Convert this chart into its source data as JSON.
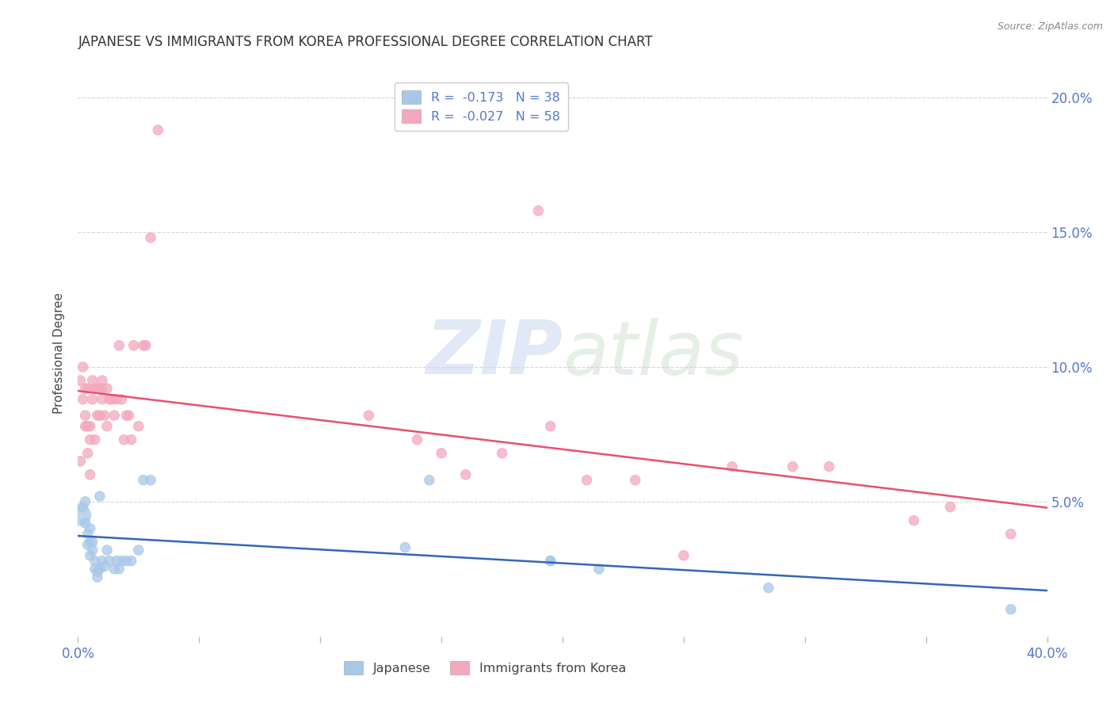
{
  "title": "JAPANESE VS IMMIGRANTS FROM KOREA PROFESSIONAL DEGREE CORRELATION CHART",
  "source": "Source: ZipAtlas.com",
  "ylabel": "Professional Degree",
  "watermark_zip": "ZIP",
  "watermark_atlas": "atlas",
  "xlim": [
    0.0,
    0.4
  ],
  "ylim": [
    0.0,
    0.21
  ],
  "xtick_positions": [
    0.0,
    0.05,
    0.1,
    0.15,
    0.2,
    0.25,
    0.3,
    0.35,
    0.4
  ],
  "xtick_labels": [
    "0.0%",
    "",
    "",
    "",
    "",
    "",
    "",
    "",
    "40.0%"
  ],
  "ytick_positions": [
    0.0,
    0.05,
    0.1,
    0.15,
    0.2
  ],
  "ytick_right_labels": [
    "",
    "5.0%",
    "10.0%",
    "15.0%",
    "20.0%"
  ],
  "japanese_color": "#a8c8e8",
  "korean_color": "#f4a8bc",
  "regression_japanese_color": "#3366bb",
  "regression_korean_color": "#e85070",
  "legend_r_japanese": "R =  -0.173",
  "legend_n_japanese": "N = 38",
  "legend_r_korean": "R =  -0.027",
  "legend_n_korean": "N = 58",
  "legend_label_japanese": "Japanese",
  "legend_label_korean": "Immigrants from Korea",
  "background_color": "#ffffff",
  "grid_color": "#d8d8d8",
  "title_color": "#333333",
  "right_axis_color": "#5577cc",
  "xtick_color": "#5577cc",
  "japanese_x": [
    0.001,
    0.002,
    0.003,
    0.003,
    0.004,
    0.004,
    0.005,
    0.005,
    0.005,
    0.006,
    0.006,
    0.007,
    0.007,
    0.008,
    0.008,
    0.009,
    0.009,
    0.01,
    0.011,
    0.012,
    0.013,
    0.015,
    0.016,
    0.017,
    0.018,
    0.02,
    0.022,
    0.025,
    0.027,
    0.03,
    0.135,
    0.145,
    0.195,
    0.215,
    0.285,
    0.385,
    0.195,
    0.01
  ],
  "japanese_y": [
    0.045,
    0.048,
    0.042,
    0.05,
    0.034,
    0.038,
    0.03,
    0.035,
    0.04,
    0.032,
    0.035,
    0.028,
    0.025,
    0.024,
    0.022,
    0.025,
    0.052,
    0.028,
    0.026,
    0.032,
    0.028,
    0.025,
    0.028,
    0.025,
    0.028,
    0.028,
    0.028,
    0.032,
    0.058,
    0.058,
    0.033,
    0.058,
    0.028,
    0.025,
    0.018,
    0.01,
    0.028,
    0.092
  ],
  "japanese_sizes": [
    350,
    80,
    80,
    80,
    80,
    80,
    80,
    80,
    80,
    80,
    80,
    80,
    80,
    80,
    80,
    80,
    80,
    80,
    80,
    80,
    80,
    80,
    80,
    80,
    80,
    80,
    80,
    80,
    80,
    80,
    80,
    80,
    80,
    80,
    80,
    80,
    80,
    80
  ],
  "korean_x": [
    0.001,
    0.001,
    0.002,
    0.002,
    0.003,
    0.003,
    0.003,
    0.004,
    0.004,
    0.004,
    0.005,
    0.005,
    0.005,
    0.006,
    0.006,
    0.007,
    0.007,
    0.008,
    0.008,
    0.009,
    0.009,
    0.01,
    0.01,
    0.011,
    0.012,
    0.012,
    0.013,
    0.014,
    0.015,
    0.016,
    0.017,
    0.018,
    0.019,
    0.02,
    0.021,
    0.022,
    0.023,
    0.025,
    0.027,
    0.028,
    0.03,
    0.033,
    0.16,
    0.175,
    0.195,
    0.21,
    0.23,
    0.25,
    0.27,
    0.295,
    0.31,
    0.345,
    0.36,
    0.385,
    0.12,
    0.14,
    0.15,
    0.19
  ],
  "korean_y": [
    0.065,
    0.095,
    0.088,
    0.1,
    0.082,
    0.092,
    0.078,
    0.068,
    0.078,
    0.092,
    0.073,
    0.06,
    0.078,
    0.088,
    0.095,
    0.092,
    0.073,
    0.082,
    0.092,
    0.092,
    0.082,
    0.088,
    0.095,
    0.082,
    0.078,
    0.092,
    0.088,
    0.088,
    0.082,
    0.088,
    0.108,
    0.088,
    0.073,
    0.082,
    0.082,
    0.073,
    0.108,
    0.078,
    0.108,
    0.108,
    0.148,
    0.188,
    0.06,
    0.068,
    0.078,
    0.058,
    0.058,
    0.03,
    0.063,
    0.063,
    0.063,
    0.043,
    0.048,
    0.038,
    0.082,
    0.073,
    0.068,
    0.158
  ],
  "korean_sizes": [
    80,
    80,
    80,
    80,
    80,
    80,
    80,
    80,
    80,
    80,
    80,
    80,
    80,
    80,
    80,
    80,
    80,
    80,
    80,
    80,
    80,
    80,
    80,
    80,
    80,
    80,
    80,
    80,
    80,
    80,
    80,
    80,
    80,
    80,
    80,
    80,
    80,
    80,
    80,
    80,
    80,
    80,
    80,
    80,
    80,
    80,
    80,
    80,
    80,
    80,
    80,
    80,
    80,
    80,
    80,
    80,
    80,
    80
  ]
}
